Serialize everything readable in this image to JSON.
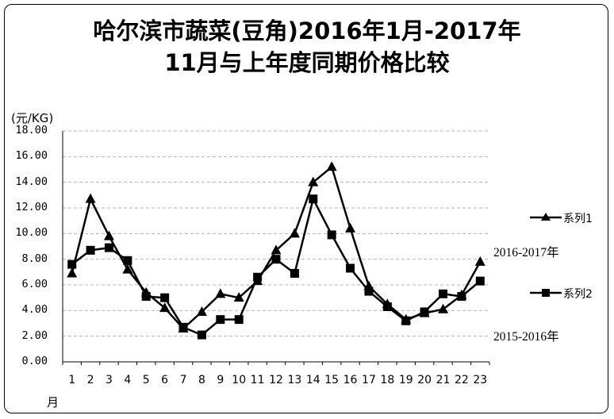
{
  "chart_data": {
    "type": "line",
    "title_line1": "哈尔滨市蔬菜(豆角)2016年1月-2017年",
    "title_line2": "11月与上年度同期价格比较",
    "ylabel": "(元/KG)",
    "xlabel": "月",
    "ylim": [
      0,
      18
    ],
    "yticks": [
      "0.00",
      "2.00",
      "4.00",
      "6.00",
      "8.00",
      "10.00",
      "12.00",
      "14.00",
      "16.00",
      "18.00"
    ],
    "categories": [
      "1",
      "2",
      "3",
      "4",
      "5",
      "6",
      "7",
      "8",
      "9",
      "10",
      "11",
      "12",
      "13",
      "14",
      "15",
      "16",
      "17",
      "18",
      "19",
      "20",
      "21",
      "22",
      "23"
    ],
    "series": [
      {
        "name": "系列1",
        "marker": "triangle",
        "values": [
          6.9,
          12.7,
          9.8,
          7.2,
          5.4,
          4.2,
          2.6,
          3.9,
          5.3,
          5.0,
          6.3,
          8.7,
          10.0,
          14.0,
          15.2,
          10.4,
          5.9,
          4.5,
          3.3,
          3.8,
          4.1,
          5.2,
          7.8
        ]
      },
      {
        "name": "系列2",
        "marker": "square",
        "values": [
          7.6,
          8.7,
          8.9,
          7.9,
          5.1,
          5.0,
          2.7,
          2.1,
          3.3,
          3.3,
          6.6,
          8.0,
          6.9,
          12.7,
          9.9,
          7.3,
          5.5,
          4.3,
          3.2,
          3.9,
          5.3,
          5.1,
          6.3
        ]
      }
    ],
    "annotations": [
      "2016-2017年",
      "2015-2016年"
    ],
    "legend_position": "right",
    "grid": "horizontal",
    "line_color": "#000000"
  }
}
